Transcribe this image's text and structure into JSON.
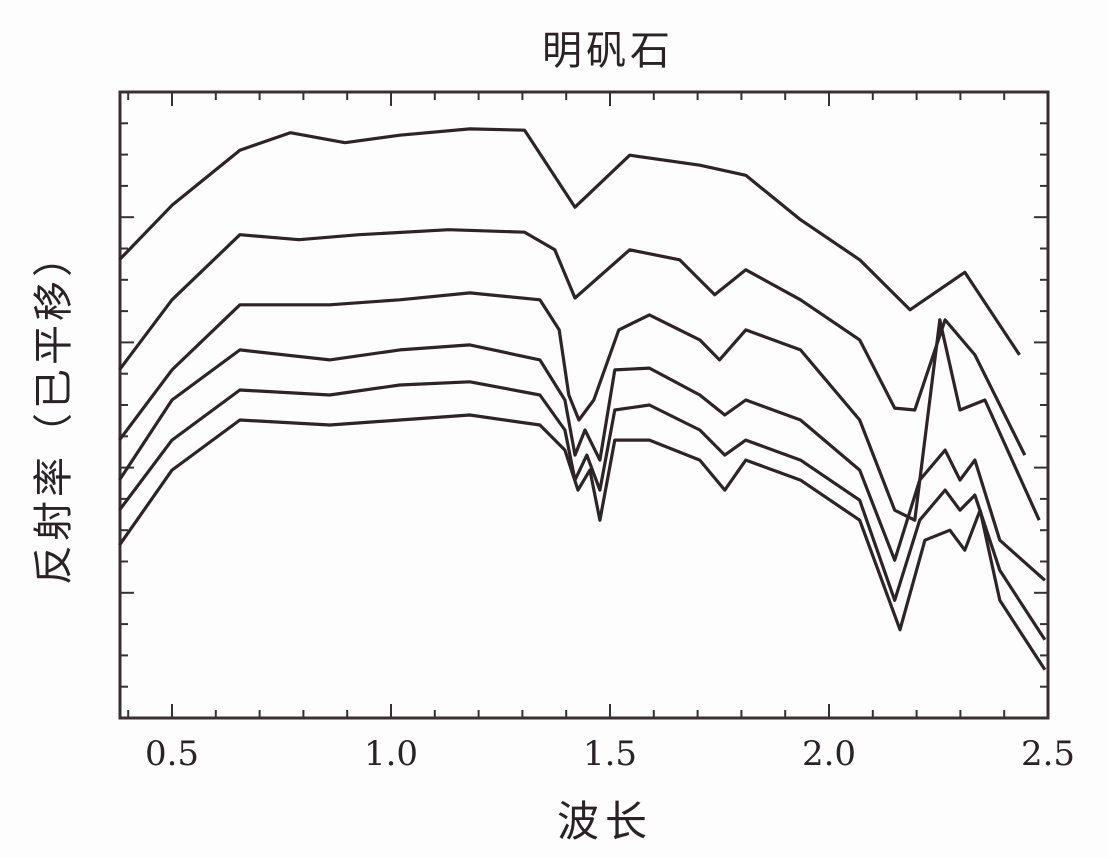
{
  "chart_data": {
    "type": "line",
    "title": "明矾石",
    "xlabel": "波长",
    "ylabel": "反射率（已平移）",
    "xlim": [
      0.38,
      2.5
    ],
    "ylim": [
      0,
      10
    ],
    "x_ticks": [
      0.5,
      1.0,
      1.5,
      2.0,
      2.5
    ],
    "x_tick_labels": [
      "0.5",
      "1.0",
      "1.5",
      "2.0",
      "2.5"
    ],
    "y_tick_labels": [],
    "grid": false,
    "line_color": "#2e2428",
    "series": [
      {
        "x": [
          0.38,
          0.5,
          0.655,
          0.77,
          0.895,
          1.02,
          1.18,
          1.305,
          1.42,
          1.545,
          1.705,
          1.81,
          1.935,
          2.07,
          2.185,
          2.31,
          2.435
        ],
        "y": [
          7.32,
          8.19,
          9.07,
          9.35,
          9.19,
          9.31,
          9.41,
          9.39,
          8.16,
          8.99,
          8.83,
          8.67,
          7.96,
          7.32,
          6.52,
          7.12,
          5.8
        ]
      },
      {
        "x": [
          0.38,
          0.5,
          0.655,
          0.79,
          0.927,
          1.132,
          1.305,
          1.374,
          1.42,
          1.545,
          1.659,
          1.739,
          1.81,
          1.935,
          2.07,
          2.15,
          2.196,
          2.265,
          2.333,
          2.447
        ],
        "y": [
          5.56,
          6.68,
          7.72,
          7.64,
          7.72,
          7.8,
          7.76,
          7.48,
          6.71,
          7.48,
          7.32,
          6.76,
          7.16,
          6.68,
          6.04,
          4.95,
          4.92,
          6.36,
          5.8,
          4.2
        ]
      },
      {
        "x": [
          0.38,
          0.5,
          0.655,
          0.86,
          1.02,
          1.18,
          1.34,
          1.384,
          1.406,
          1.429,
          1.463,
          1.52,
          1.59,
          1.705,
          1.75,
          1.81,
          1.935,
          2.07,
          2.15,
          2.196,
          2.253,
          2.299,
          2.356,
          2.48
        ],
        "y": [
          4.44,
          5.56,
          6.6,
          6.6,
          6.68,
          6.79,
          6.68,
          6.2,
          5.16,
          4.76,
          5.08,
          6.2,
          6.44,
          6.04,
          5.72,
          6.2,
          5.88,
          4.76,
          3.32,
          3.16,
          6.36,
          4.92,
          5.08,
          3.16
        ]
      },
      {
        "x": [
          0.38,
          0.5,
          0.655,
          0.86,
          1.02,
          1.18,
          1.34,
          1.397,
          1.42,
          1.443,
          1.477,
          1.511,
          1.59,
          1.705,
          1.762,
          1.81,
          1.935,
          2.07,
          2.15,
          2.207,
          2.265,
          2.299,
          2.333,
          2.39,
          2.493
        ],
        "y": [
          3.8,
          5.08,
          5.88,
          5.72,
          5.88,
          5.96,
          5.72,
          5.08,
          4.2,
          4.6,
          4.12,
          5.56,
          5.59,
          5.16,
          4.84,
          5.08,
          4.76,
          3.96,
          2.52,
          3.8,
          4.28,
          3.8,
          4.12,
          2.84,
          2.2
        ]
      },
      {
        "x": [
          0.38,
          0.5,
          0.655,
          0.86,
          1.02,
          1.18,
          1.34,
          1.397,
          1.42,
          1.447,
          1.477,
          1.511,
          1.59,
          1.705,
          1.762,
          1.81,
          1.935,
          2.07,
          2.15,
          2.207,
          2.265,
          2.299,
          2.333,
          2.39,
          2.493
        ],
        "y": [
          3.32,
          4.44,
          5.24,
          5.16,
          5.32,
          5.37,
          5.16,
          4.6,
          3.8,
          4.2,
          3.64,
          4.92,
          5.0,
          4.6,
          4.2,
          4.44,
          4.12,
          3.48,
          1.88,
          3.16,
          3.64,
          3.32,
          3.56,
          2.36,
          1.25
        ]
      },
      {
        "x": [
          0.38,
          0.5,
          0.655,
          0.86,
          1.02,
          1.18,
          1.34,
          1.397,
          1.427,
          1.454,
          1.477,
          1.511,
          1.59,
          1.705,
          1.762,
          1.81,
          1.935,
          2.07,
          2.162,
          2.219,
          2.276,
          2.31,
          2.345,
          2.39,
          2.493
        ],
        "y": [
          2.76,
          3.96,
          4.76,
          4.68,
          4.76,
          4.84,
          4.68,
          4.28,
          3.64,
          3.96,
          3.16,
          4.44,
          4.44,
          4.12,
          3.64,
          4.12,
          3.8,
          3.16,
          1.41,
          2.84,
          3.0,
          2.68,
          3.32,
          1.88,
          0.77
        ]
      }
    ]
  }
}
